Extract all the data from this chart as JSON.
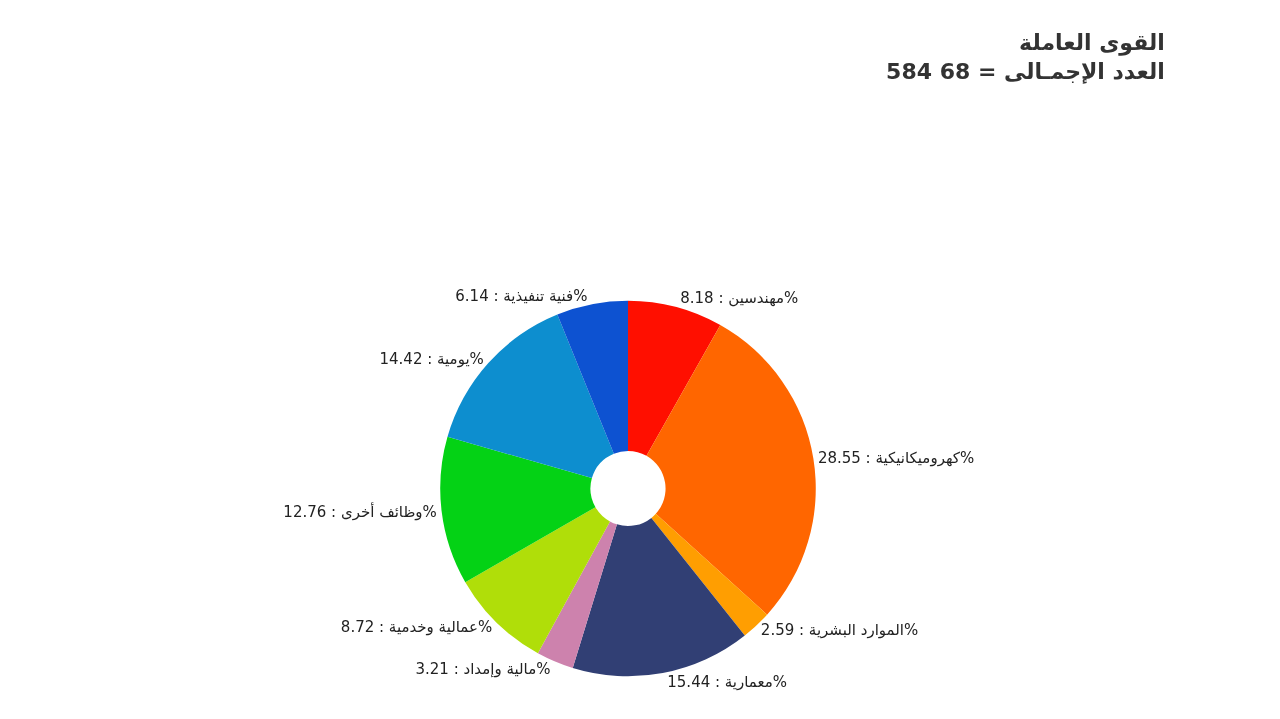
{
  "chart_data": {
    "type": "donut",
    "title": "القوى العاملة",
    "subtitle": "العدد الإجمـالى = 68 584",
    "categories": [
      "مهندسين",
      "كهروميكانيكية",
      "الموارد البشرية",
      "معمارية",
      "مالية وإمداد",
      "عمالية وخدمية",
      "وظائف أخرى",
      "يومية",
      "فنية تنفيذية"
    ],
    "values": [
      8.18,
      28.55,
      2.59,
      15.44,
      3.21,
      8.72,
      12.76,
      14.42,
      6.14
    ],
    "value_labels": [
      "8.18%",
      "28.55%",
      "2.59%",
      "15.44%",
      "3.21%",
      "8.72%",
      "12.76%",
      "14.42%",
      "6.14%"
    ],
    "colors": [
      "#ff0f00",
      "#ff6600",
      "#ff9e01",
      "#313f74",
      "#cd82ad",
      "#b0de09",
      "#04d215",
      "#0d8ecf",
      "#0d52d1"
    ],
    "legend": false
  }
}
